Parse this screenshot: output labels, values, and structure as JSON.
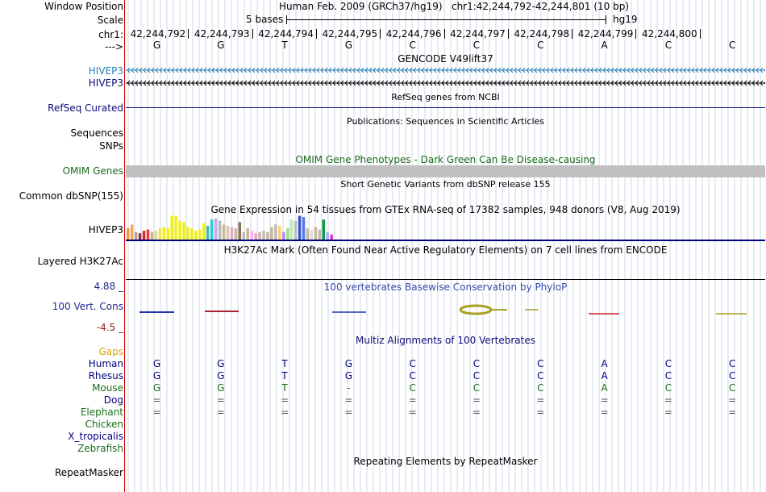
{
  "header": {
    "window_position_label": "Window Position",
    "scale_label": "Scale",
    "chr_label": "chr1:",
    "strand_label": "--->",
    "assembly": "Human Feb. 2009 (GRCh37/hg19)",
    "position": "chr1:42,244,792-42,244,801 (10 bp)",
    "scale_text": "5 bases",
    "db": "hg19",
    "coords": [
      "42,244,792",
      "42,244,793",
      "42,244,794",
      "42,244,795",
      "42,244,796",
      "42,244,797",
      "42,244,798",
      "42,244,799",
      "42,244,800"
    ],
    "bases": [
      "G",
      "G",
      "T",
      "G",
      "C",
      "C",
      "C",
      "A",
      "C",
      "C"
    ]
  },
  "tracks": {
    "gencode_title": "GENCODE V49lift37",
    "hivep3_a": "HIVEP3",
    "hivep3_b": "HIVEP3",
    "refseq_title": "RefSeq genes from NCBI",
    "refseq_label": "RefSeq Curated",
    "publications_title": "Publications: Sequences in Scientific Articles",
    "sequences_label": "Sequences",
    "snps_label": "SNPs",
    "omim_title": "OMIM Gene Phenotypes - Dark Green Can Be Disease-causing",
    "omim_label": "OMIM Genes",
    "dbsnp_title": "Short Genetic Variants from dbSNP release 155",
    "dbsnp_label": "Common dbSNP(155)",
    "gtex_title": "Gene Expression in 54 tissues from GTEx RNA-seq of 17382 samples, 948 donors (V8, Aug 2019)",
    "gtex_label": "HIVEP3",
    "h3k27_title": "H3K27Ac Mark (Often Found Near Active Regulatory Elements) on 7 cell lines from ENCODE",
    "h3k27_label": "Layered H3K27Ac",
    "cons_title": "100 vertebrates Basewise Conservation by PhyloP",
    "cons_max": "4.88 _",
    "cons_label": "100 Vert. Cons",
    "cons_min": "-4.5 _",
    "multiz_title": "Multiz Alignments of 100 Vertebrates",
    "gaps_label": "Gaps",
    "species": [
      {
        "name": "Human",
        "color": "#000080",
        "row": [
          "G",
          "G",
          "T",
          "G",
          "C",
          "C",
          "C",
          "A",
          "C",
          "C"
        ]
      },
      {
        "name": "Rhesus",
        "color": "#000080",
        "row": [
          "G",
          "G",
          "T",
          "G",
          "C",
          "C",
          "C",
          "A",
          "C",
          "C"
        ]
      },
      {
        "name": "Mouse",
        "color": "#1a6b1a",
        "row": [
          "G",
          "G",
          "T",
          "-",
          "C",
          "C",
          "C",
          "A",
          "C",
          "C"
        ]
      },
      {
        "name": "Dog",
        "color": "#000080",
        "row": [
          "=",
          "=",
          "=",
          "=",
          "=",
          "=",
          "=",
          "=",
          "=",
          "="
        ]
      },
      {
        "name": "Elephant",
        "color": "#1a6b1a",
        "row": [
          "=",
          "=",
          "=",
          "=",
          "=",
          "=",
          "=",
          "=",
          "=",
          "="
        ]
      },
      {
        "name": "Chicken",
        "color": "#1a6b1a",
        "row": [
          "",
          "",
          "",
          "",
          "",
          "",
          "",
          "",
          "",
          ""
        ]
      },
      {
        "name": "X_tropicalis",
        "color": "#000080",
        "row": [
          "",
          "",
          "",
          "",
          "",
          "",
          "",
          "",
          "",
          ""
        ]
      },
      {
        "name": "Zebrafish",
        "color": "#1a6b1a",
        "row": [
          "",
          "",
          "",
          "",
          "",
          "",
          "",
          "",
          "",
          ""
        ]
      }
    ],
    "repeat_title": "Repeating Elements by RepeatMasker",
    "repeat_label": "RepeatMasker"
  },
  "gtex_values": [
    {
      "v": 0.45,
      "c": "#f39c3e"
    },
    {
      "v": 0.6,
      "c": "#f5a55c"
    },
    {
      "v": 0.3,
      "c": "#b5a38c"
    },
    {
      "v": 0.25,
      "c": "#8c2d5a"
    },
    {
      "v": 0.35,
      "c": "#cc2a36"
    },
    {
      "v": 0.4,
      "c": "#ee3b33"
    },
    {
      "v": 0.3,
      "c": "#c8b89a"
    },
    {
      "v": 0.35,
      "c": "#e8d890"
    },
    {
      "v": 0.45,
      "c": "#f0e060"
    },
    {
      "v": 0.5,
      "c": "#eeee22"
    },
    {
      "v": 0.45,
      "c": "#eeee22"
    },
    {
      "v": 0.95,
      "c": "#eeee22"
    },
    {
      "v": 0.95,
      "c": "#eeee22"
    },
    {
      "v": 0.75,
      "c": "#eeee22"
    },
    {
      "v": 0.7,
      "c": "#eeee22"
    },
    {
      "v": 0.5,
      "c": "#eeee22"
    },
    {
      "v": 0.45,
      "c": "#eeee22"
    },
    {
      "v": 0.35,
      "c": "#eeee22"
    },
    {
      "v": 0.4,
      "c": "#eeee22"
    },
    {
      "v": 0.65,
      "c": "#eeee22"
    },
    {
      "v": 0.55,
      "c": "#44bbaa"
    },
    {
      "v": 0.8,
      "c": "#22ccdd"
    },
    {
      "v": 0.85,
      "c": "#ccaadd"
    },
    {
      "v": 0.75,
      "c": "#bbbbbb"
    },
    {
      "v": 0.6,
      "c": "#c8b89a"
    },
    {
      "v": 0.55,
      "c": "#d8c8b0"
    },
    {
      "v": 0.5,
      "c": "#ddaacc"
    },
    {
      "v": 0.45,
      "c": "#c8b89a"
    },
    {
      "v": 0.7,
      "c": "#8b7355"
    },
    {
      "v": 0.3,
      "c": "#bbbbbb"
    },
    {
      "v": 0.45,
      "c": "#c8b89a"
    },
    {
      "v": 0.35,
      "c": "#ffaaff"
    },
    {
      "v": 0.25,
      "c": "#ddaacc"
    },
    {
      "v": 0.3,
      "c": "#c8b89a"
    },
    {
      "v": 0.35,
      "c": "#bbbbbb"
    },
    {
      "v": 0.3,
      "c": "#c8b89a"
    },
    {
      "v": 0.5,
      "c": "#c8b89a"
    },
    {
      "v": 0.6,
      "c": "#bbbbbb"
    },
    {
      "v": 0.55,
      "c": "#ffd066"
    },
    {
      "v": 0.3,
      "c": "#aa88ff"
    },
    {
      "v": 0.45,
      "c": "#aadd88"
    },
    {
      "v": 0.8,
      "c": "#bbeebb"
    },
    {
      "v": 0.75,
      "c": "#bbbbbb"
    },
    {
      "v": 0.95,
      "c": "#3355cc"
    },
    {
      "v": 0.9,
      "c": "#5577ee"
    },
    {
      "v": 0.45,
      "c": "#c8b89a"
    },
    {
      "v": 0.4,
      "c": "#dddddd"
    },
    {
      "v": 0.5,
      "c": "#c8b89a"
    },
    {
      "v": 0.4,
      "c": "#bbbbbb"
    },
    {
      "v": 0.8,
      "c": "#119944"
    },
    {
      "v": 0.3,
      "c": "#aaaaff"
    },
    {
      "v": 0.2,
      "c": "#dd33dd"
    },
    {
      "v": 0.1,
      "c": "#f0f0f0"
    },
    {
      "v": 0.1,
      "c": "#f0f0f0"
    }
  ],
  "colors": {
    "gencode": "#2c7fb8",
    "refseq": "#0c0c78",
    "omim_label": "#1a6b1a",
    "omim_bar": "#c0c0c0",
    "cons_max": "#1f2a8a",
    "cons_min": "#8b1a1a",
    "gaps": "#e0a000",
    "grid": "#cfd9ea",
    "gtex_axis": "#000080"
  }
}
